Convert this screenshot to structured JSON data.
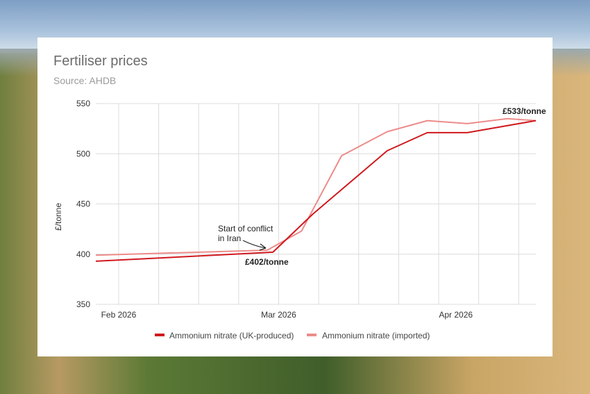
{
  "chart_data": {
    "type": "line",
    "title": "Fertiliser prices",
    "subtitle": "Source: AHDB",
    "ylabel": "£/tonne",
    "ylim": [
      350,
      550
    ],
    "yticks": [
      350,
      400,
      450,
      500,
      550
    ],
    "xlim": [
      "2026-01-28",
      "2026-04-15"
    ],
    "xticks": [
      {
        "date": "2026-02-01",
        "label": "Feb 2026"
      },
      {
        "date": "2026-03-01",
        "label": "Mar 2026"
      },
      {
        "date": "2026-04-01",
        "label": "Apr 2026"
      }
    ],
    "grid": true,
    "legend": "bottom",
    "series": [
      {
        "name": "Ammonium nitrate (UK-produced)",
        "color": "#d0191e",
        "points": [
          {
            "x": "2026-01-28",
            "y": 393
          },
          {
            "x": "2026-02-28",
            "y": 402
          },
          {
            "x": "2026-03-07",
            "y": 440
          },
          {
            "x": "2026-03-20",
            "y": 503
          },
          {
            "x": "2026-03-27",
            "y": 521
          },
          {
            "x": "2026-04-03",
            "y": 521
          },
          {
            "x": "2026-04-15",
            "y": 533
          }
        ]
      },
      {
        "name": "Ammonium nitrate (imported)",
        "color": "#ec8c8a",
        "points": [
          {
            "x": "2026-01-28",
            "y": 399
          },
          {
            "x": "2026-02-27",
            "y": 404
          },
          {
            "x": "2026-03-05",
            "y": 423
          },
          {
            "x": "2026-03-12",
            "y": 498
          },
          {
            "x": "2026-03-20",
            "y": 522
          },
          {
            "x": "2026-03-27",
            "y": 533
          },
          {
            "x": "2026-04-03",
            "y": 530
          },
          {
            "x": "2026-04-10",
            "y": 535
          },
          {
            "x": "2026-04-15",
            "y": 533
          }
        ]
      }
    ],
    "annotations": [
      {
        "text": "Start of conflict",
        "text2": "in Iran",
        "x": "2026-02-28",
        "y": 402
      },
      {
        "value_label": "£402/tonne",
        "x": "2026-02-28",
        "y": 402
      },
      {
        "value_label": "£533/tonne",
        "x": "2026-04-15",
        "y": 533
      }
    ]
  }
}
